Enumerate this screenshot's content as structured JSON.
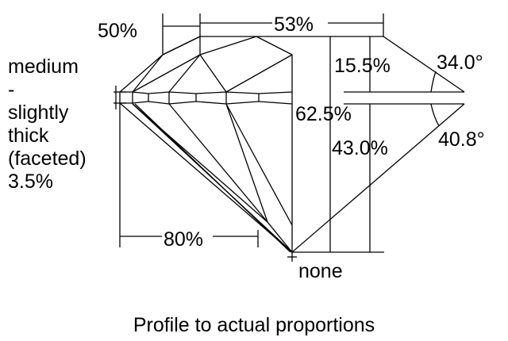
{
  "labels": {
    "table_offset": "50%",
    "table_size": "53%",
    "girdle": [
      "medium",
      "-",
      "slightly",
      "thick",
      "(faceted)",
      "3.5%"
    ],
    "crown_height": "15.5%",
    "crown_angle": "34.0°",
    "total_depth": "62.5%",
    "pavilion_depth": "43.0%",
    "pavilion_angle": "40.8°",
    "lower_half": "80%",
    "culet": "none"
  },
  "caption": "Profile to actual proportions",
  "colors": {
    "line": "#000000",
    "background": "#ffffff"
  }
}
